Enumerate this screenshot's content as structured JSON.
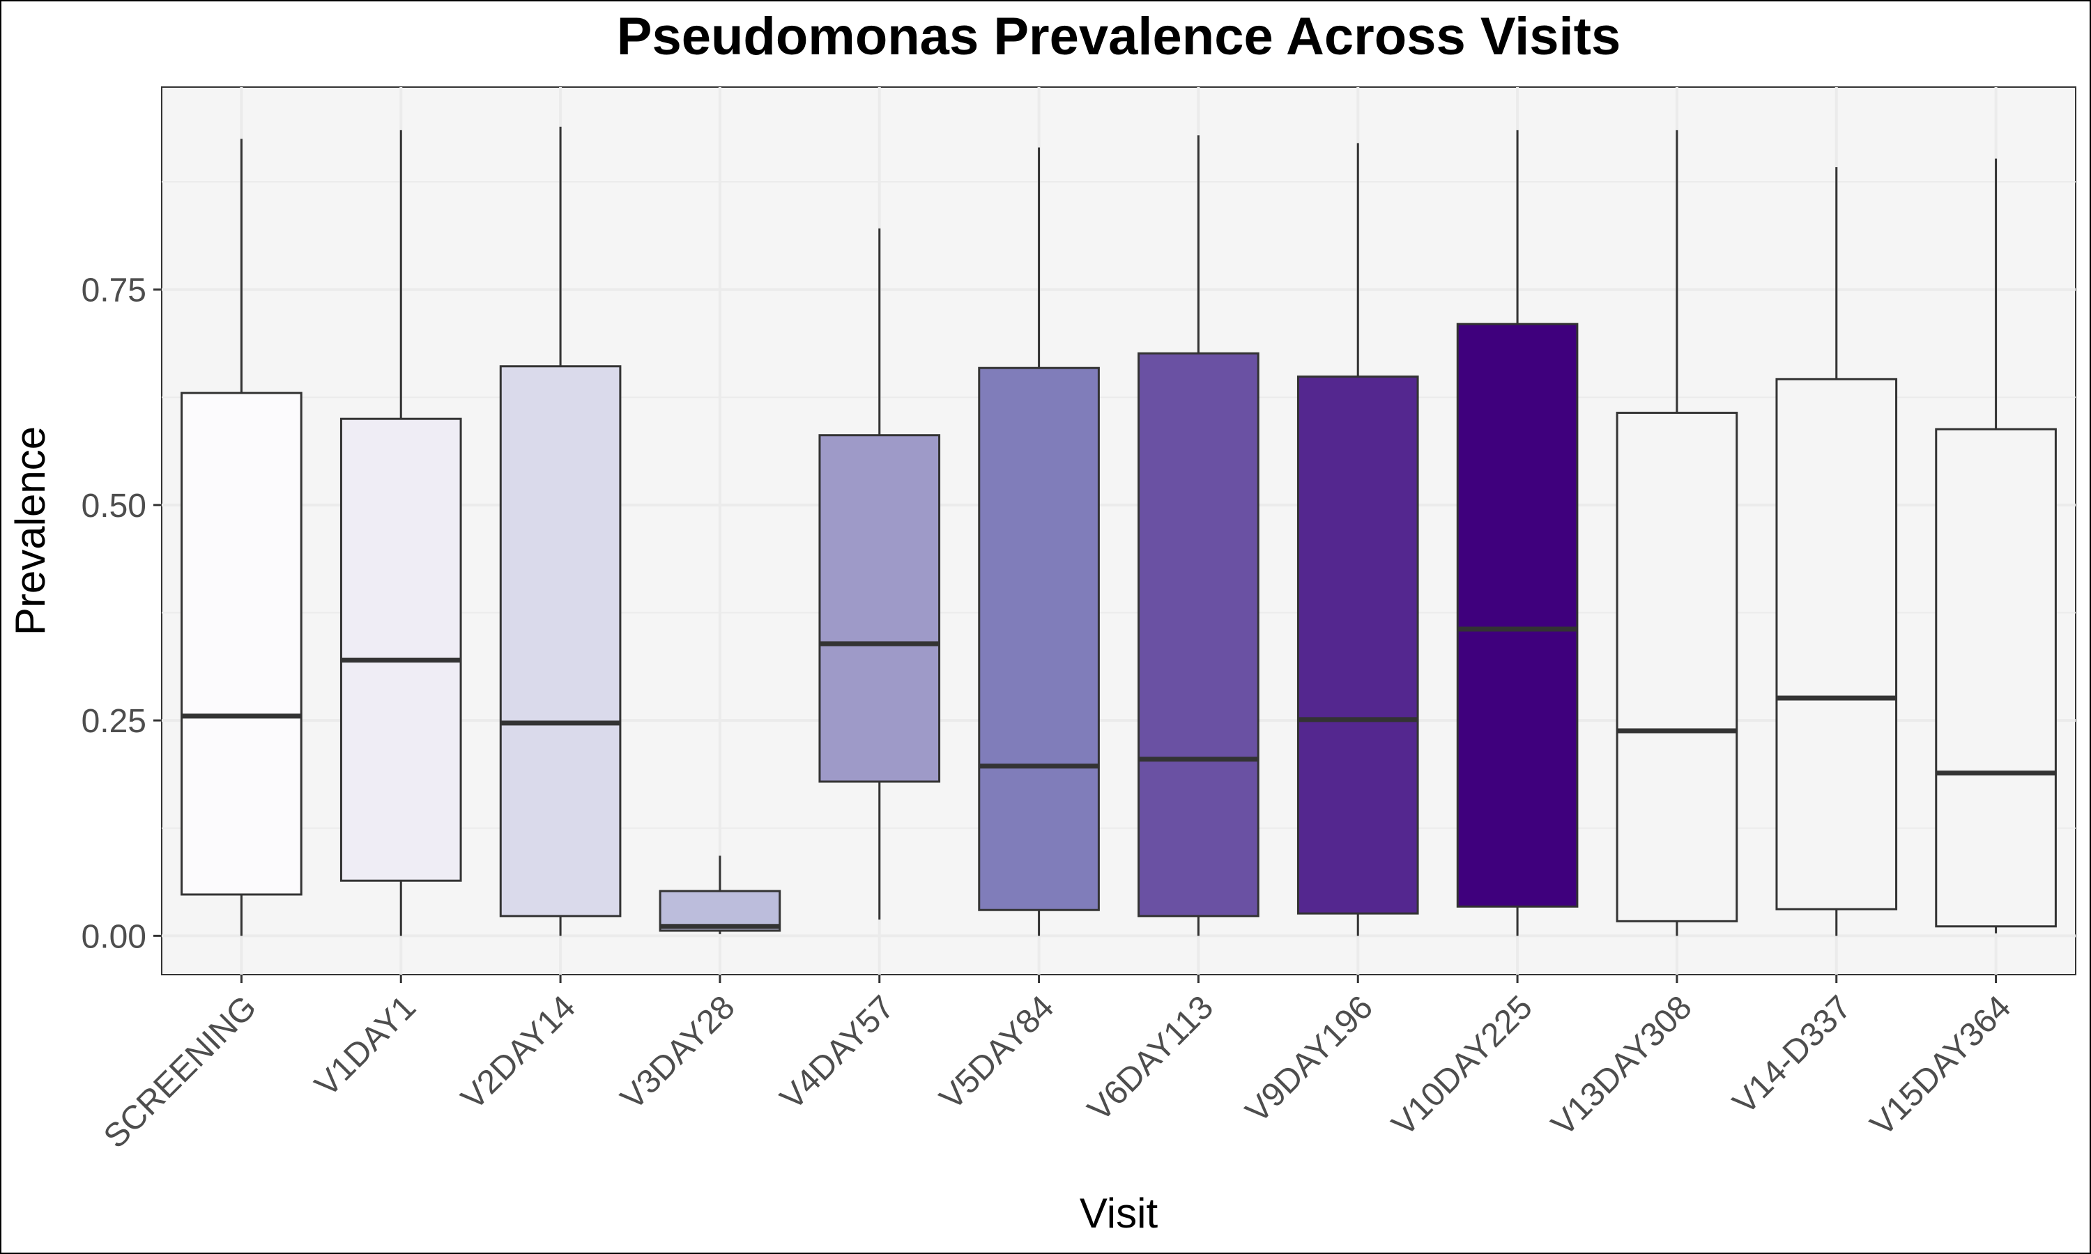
{
  "chart_data": {
    "type": "boxplot",
    "title": "Pseudomonas Prevalence Across Visits",
    "xlabel": "Visit",
    "ylabel": "Prevalence",
    "ylim": [
      -0.045,
      0.985
    ],
    "yticks": [
      0.0,
      0.25,
      0.5,
      0.75
    ],
    "ytick_labels": [
      "0.00",
      "0.25",
      "0.50",
      "0.75"
    ],
    "grid": true,
    "legend": "none",
    "categories": [
      "SCREENING",
      "V1DAY1",
      "V2DAY14",
      "V3DAY28",
      "V4DAY57",
      "V5DAY84",
      "V6DAY113",
      "V9DAY196",
      "V10DAY225",
      "V13DAY308",
      "V14-D337",
      "V15DAY364"
    ],
    "boxes": [
      {
        "min": 0.0,
        "q1": 0.048,
        "median": 0.255,
        "q3": 0.63,
        "max": 0.925,
        "color": "#fcfbfd"
      },
      {
        "min": 0.0,
        "q1": 0.064,
        "median": 0.32,
        "q3": 0.6,
        "max": 0.935,
        "color": "#efedf5"
      },
      {
        "min": 0.0,
        "q1": 0.023,
        "median": 0.247,
        "q3": 0.661,
        "max": 0.939,
        "color": "#dadaeb"
      },
      {
        "min": 0.002,
        "q1": 0.006,
        "median": 0.011,
        "q3": 0.052,
        "max": 0.093,
        "color": "#bcbddc"
      },
      {
        "min": 0.019,
        "q1": 0.179,
        "median": 0.339,
        "q3": 0.581,
        "max": 0.821,
        "color": "#9e9ac8"
      },
      {
        "min": 0.0,
        "q1": 0.03,
        "median": 0.197,
        "q3": 0.659,
        "max": 0.915,
        "color": "#807dba"
      },
      {
        "min": 0.0,
        "q1": 0.023,
        "median": 0.205,
        "q3": 0.676,
        "max": 0.929,
        "color": "#6a51a3"
      },
      {
        "min": 0.0,
        "q1": 0.026,
        "median": 0.251,
        "q3": 0.649,
        "max": 0.92,
        "color": "#54278f"
      },
      {
        "min": 0.0,
        "q1": 0.034,
        "median": 0.356,
        "q3": 0.71,
        "max": 0.935,
        "color": "#3f007d"
      },
      {
        "min": 0.0,
        "q1": 0.017,
        "median": 0.238,
        "q3": 0.607,
        "max": 0.935,
        "color": "#f5f5f5"
      },
      {
        "min": 0.0,
        "q1": 0.031,
        "median": 0.276,
        "q3": 0.646,
        "max": 0.892,
        "color": "#f5f5f5"
      },
      {
        "min": 0.003,
        "q1": 0.011,
        "median": 0.189,
        "q3": 0.588,
        "max": 0.902,
        "color": "#f5f5f5"
      }
    ],
    "colors": {
      "panel_background": "#f5f5f5",
      "grid": "#ebebeb",
      "outline": "#333333"
    }
  }
}
